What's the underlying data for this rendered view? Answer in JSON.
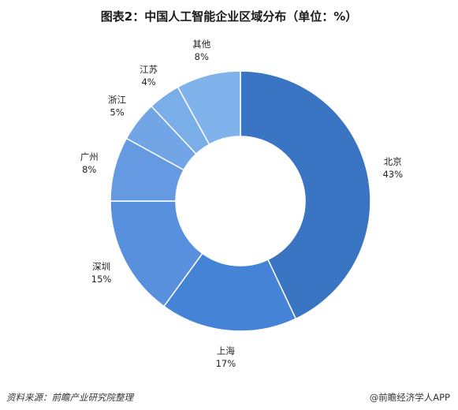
{
  "chart_data": {
    "type": "pie",
    "title": "图表2：中国人工智能企业区域分布（单位：%）",
    "hole": "donut",
    "categories": [
      "北京",
      "上海",
      "深圳",
      "广州",
      "浙江",
      "江苏",
      "其他"
    ],
    "values": [
      43,
      17,
      15,
      8,
      5,
      4,
      8
    ],
    "labels": [
      "43%",
      "17%",
      "15%",
      "8%",
      "5%",
      "4%",
      "8%"
    ],
    "colors": [
      "#3a75c4",
      "#4583d6",
      "#5990de",
      "#659ae3",
      "#71a5e6",
      "#7aaee9",
      "#80b3eb"
    ]
  },
  "footer": {
    "source": "资料来源：前瞻产业研究院整理",
    "credit": "@前瞻经济学人APP"
  }
}
